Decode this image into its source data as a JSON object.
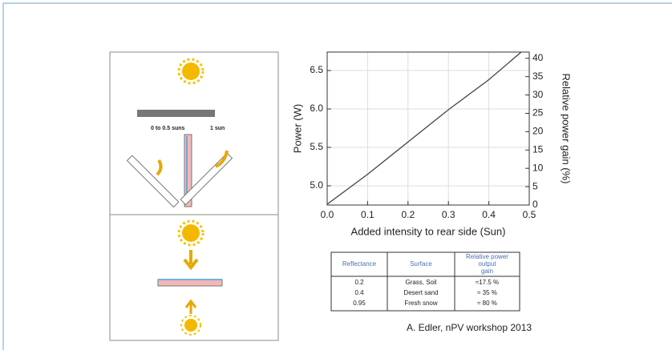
{
  "chart_data": {
    "type": "line",
    "xlabel": "Added intensity to rear side (Sun)",
    "ylabel": "Power (W)",
    "y2label": "Relative power gain (%)",
    "x": [
      0,
      0.1,
      0.2,
      0.3,
      0.4,
      0.48
    ],
    "series": [
      {
        "color": "#444444",
        "values": [
          4.76,
          5.15,
          5.57,
          5.99,
          6.38,
          6.74
        ]
      }
    ],
    "xlim": [
      0,
      0.5
    ],
    "xticks": [
      {
        "value": 0,
        "label": "0.0"
      },
      0.1,
      0.2,
      0.3,
      0.4,
      0.5
    ],
    "ylim": [
      4.75,
      6.74
    ],
    "yticks": [
      {
        "value": 5,
        "label": "5.0"
      },
      5.5,
      {
        "value": 6,
        "label": "6.0"
      },
      6.5
    ],
    "y2lim": [
      0,
      41.7
    ],
    "y2ticks": [
      0,
      5,
      10,
      15,
      20,
      25,
      30,
      35,
      40
    ],
    "grid": true
  },
  "diagram": {
    "labels": [
      "0 to 0.5 suns",
      "1 sun"
    ]
  },
  "table": {
    "header": [
      "Reflectance",
      "Surface",
      "Relative power output gain"
    ],
    "rows": [
      [
        "0.2",
        "Grass, Soil",
        "≈17.5 %"
      ],
      [
        "0.4",
        "Desert sand",
        "≈ 35 %"
      ],
      [
        "0.95",
        "Fresh snow",
        "≈ 80 %"
      ]
    ]
  },
  "credit": "A. Edler, nPV workshop 2013"
}
